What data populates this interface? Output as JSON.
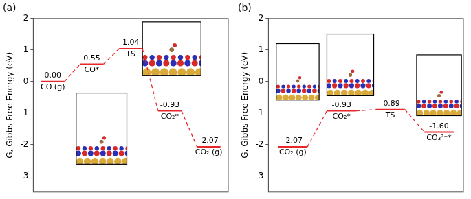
{
  "chart_data": [
    {
      "type": "line",
      "title": "(a)",
      "y_label": "G, Gibbs Free Energy (eV)",
      "categories": [
        "CO (g)",
        "CO*",
        "TS",
        "CO₂*",
        "CO₂ (g)"
      ],
      "values": [
        0,
        0.55,
        1.04,
        -0.93,
        -2.07
      ],
      "value_labels": [
        "0.00",
        "0.55",
        "1.04",
        "-0.93",
        "-2.07"
      ],
      "color": "#e8272a",
      "line_style": "dashed",
      "data_labels": true,
      "ylim": [
        -3.5,
        2
      ],
      "yticks": [
        -3,
        -2,
        -1,
        0,
        1,
        2
      ],
      "grid": false,
      "tick_labels": "y"
    },
    {
      "type": "line",
      "title": "(b)",
      "y_label": "G, Gibbs Free Energy (eV)",
      "categories": [
        "CO₂ (g)",
        "CO₂*",
        "TS",
        "CO₃²⁻*"
      ],
      "values": [
        -2.07,
        -0.93,
        -0.89,
        -1.6
      ],
      "value_labels": [
        "-2.07",
        "-0.93",
        "-0.89",
        "-1.60"
      ],
      "color": "#e8272a",
      "line_style": "dashed",
      "data_labels": true,
      "ylim": [
        -3.5,
        2
      ],
      "yticks": [
        -3,
        -2,
        -1,
        0,
        1,
        2
      ],
      "grid": false,
      "tick_labels": "y"
    }
  ]
}
